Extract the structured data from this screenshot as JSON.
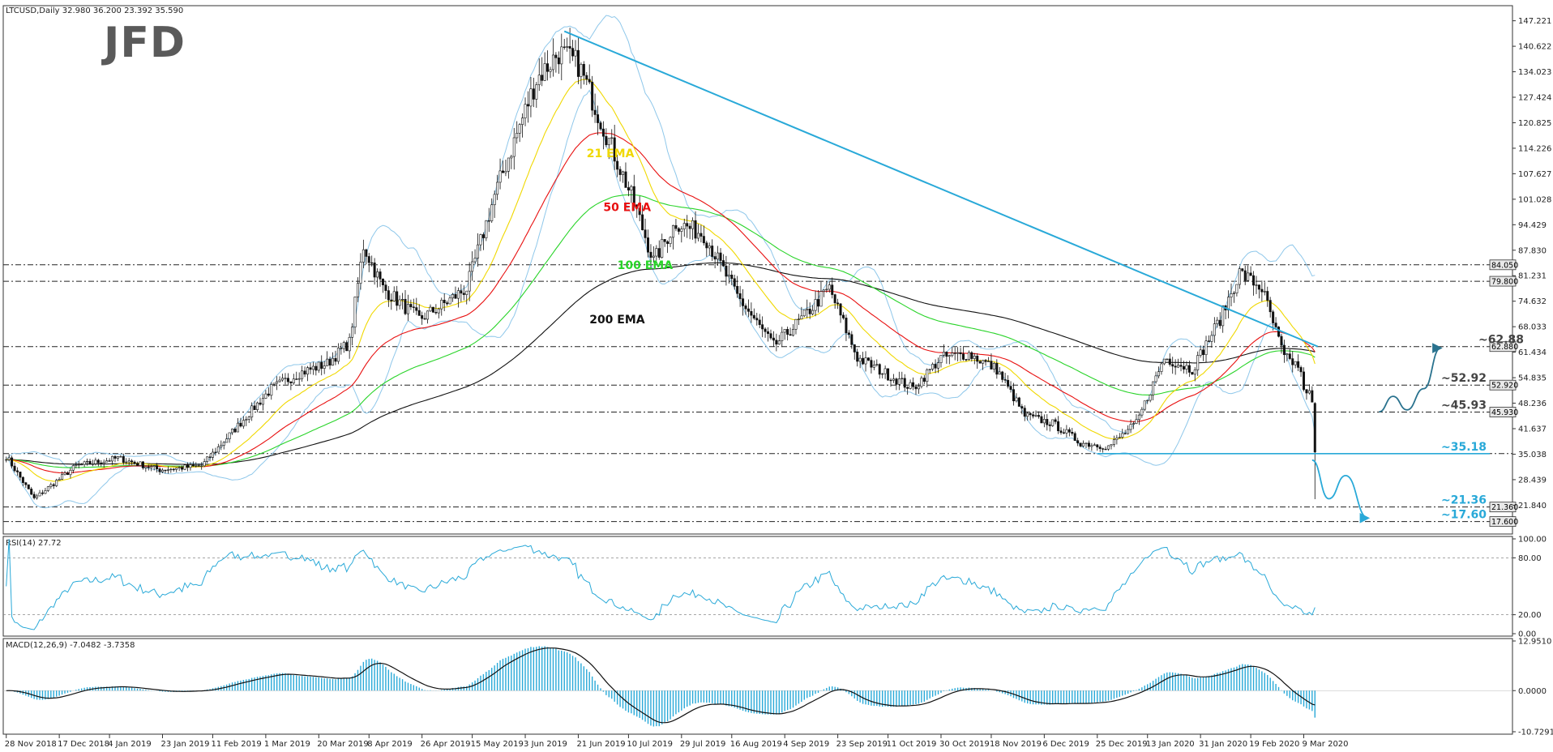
{
  "symbol_header": "LTCUSD,Daily  32.980 36.200 23.392 35.590",
  "logo": "JFD",
  "rsi_header": "RSI(14) 27.72",
  "macd_header": "MACD(12,26,9) -7.0482 -3.7358",
  "colors": {
    "trendline": "#29a9d8",
    "ema21": "#f0d800",
    "ema50": "#e81010",
    "ema100": "#29d429",
    "ema200": "#111111",
    "bollinger": "#8ec7ea",
    "rsi": "#29a9d8",
    "macd_hist": "#29a9d8",
    "macd_signal": "#111111",
    "level_text": "#444444",
    "target_text": "#29a9d8"
  },
  "chart_data": [
    {
      "type": "candlestick",
      "name": "price",
      "ylim": [
        15.0,
        150.5
      ],
      "y_ticks": [
        "147.221",
        "140.622",
        "134.023",
        "127.424",
        "120.825",
        "114.226",
        "107.627",
        "101.028",
        "94.429",
        "87.830",
        "81.231",
        "74.632",
        "68.033",
        "61.434",
        "54.835",
        "48.236",
        "41.637",
        "35.038",
        "28.439",
        "21.840"
      ],
      "x_tick_labels": [
        "28 Nov 2018",
        "17 Dec 2018",
        "4 Jan 2019",
        "23 Jan 2019",
        "11 Feb 2019",
        "1 Mar 2019",
        "20 Mar 2019",
        "8 Apr 2019",
        "26 Apr 2019",
        "15 May 2019",
        "3 Jun 2019",
        "21 Jun 2019",
        "10 Jul 2019",
        "29 Jul 2019",
        "16 Aug 2019",
        "4 Sep 2019",
        "23 Sep 2019",
        "11 Oct 2019",
        "30 Oct 2019",
        "18 Nov 2019",
        "6 Dec 2019",
        "25 Dec 2019",
        "13 Jan 2020",
        "31 Jan 2020",
        "19 Feb 2020",
        "9 Mar 2020"
      ],
      "close_anchors": [
        [
          0,
          34.5
        ],
        [
          10,
          23.5
        ],
        [
          25,
          32
        ],
        [
          40,
          34
        ],
        [
          55,
          31
        ],
        [
          70,
          32
        ],
        [
          80,
          40
        ],
        [
          95,
          52
        ],
        [
          105,
          56
        ],
        [
          115,
          58.5
        ],
        [
          123,
          64
        ],
        [
          128,
          89
        ],
        [
          135,
          78
        ],
        [
          148,
          70
        ],
        [
          155,
          73
        ],
        [
          165,
          78
        ],
        [
          175,
          102
        ],
        [
          183,
          118
        ],
        [
          190,
          132
        ],
        [
          198,
          139
        ],
        [
          205,
          136
        ],
        [
          215,
          118
        ],
        [
          225,
          100
        ],
        [
          232,
          85
        ],
        [
          240,
          95
        ],
        [
          250,
          92
        ],
        [
          262,
          76
        ],
        [
          275,
          63
        ],
        [
          285,
          70
        ],
        [
          295,
          78
        ],
        [
          305,
          60
        ],
        [
          315,
          56
        ],
        [
          325,
          52
        ],
        [
          335,
          60
        ],
        [
          345,
          61
        ],
        [
          355,
          57
        ],
        [
          365,
          45
        ],
        [
          375,
          43
        ],
        [
          385,
          38
        ],
        [
          395,
          37
        ],
        [
          405,
          43
        ],
        [
          415,
          60
        ],
        [
          425,
          57
        ],
        [
          435,
          70
        ],
        [
          442,
          82
        ],
        [
          450,
          78
        ],
        [
          458,
          60
        ],
        [
          463,
          58
        ],
        [
          466,
          50
        ],
        [
          468,
          35.6
        ]
      ],
      "levels": [
        {
          "value": 84.05,
          "label": "84.050",
          "style": "dashdot"
        },
        {
          "value": 79.8,
          "label": "79.800",
          "style": "dashdot"
        },
        {
          "value": 62.88,
          "label": "62.880",
          "style": "dashdot",
          "annotation": "~62.88"
        },
        {
          "value": 52.92,
          "label": "52.920",
          "style": "dashdot",
          "annotation": "~52.92"
        },
        {
          "value": 45.93,
          "label": "45.930",
          "style": "dashdot",
          "annotation": "~45.93"
        },
        {
          "value": 35.18,
          "label": "",
          "style": "dashdot",
          "annotation": "~35.18"
        },
        {
          "value": 21.36,
          "label": "21.360",
          "style": "dashdot",
          "annotation": "~21.36"
        },
        {
          "value": 17.6,
          "label": "17.600",
          "style": "dashdot",
          "annotation": "~17.60"
        }
      ],
      "trendline": {
        "from": [
          200,
          144.5
        ],
        "to": [
          470,
          62.9
        ]
      },
      "support_segment": {
        "from": [
          391,
          35.18
        ],
        "value": 35.18
      },
      "indicators": [
        "21 EMA",
        "50 EMA",
        "100 EMA",
        "200 EMA",
        "Bollinger Bands"
      ],
      "ema_labels": [
        {
          "text": "21 EMA",
          "x": 208,
          "y": 113
        },
        {
          "text": "50 EMA",
          "x": 214,
          "y": 99
        },
        {
          "text": "100 EMA",
          "x": 219,
          "y": 84
        },
        {
          "text": "200 EMA",
          "x": 209,
          "y": 70
        }
      ],
      "scenario_up": [
        [
          492,
          46
        ],
        [
          497,
          50
        ],
        [
          502,
          46.5
        ],
        [
          508,
          52
        ],
        [
          514,
          62.5
        ]
      ],
      "scenario_down": [
        [
          468,
          33.5
        ],
        [
          474,
          23.5
        ],
        [
          480,
          29.5
        ],
        [
          488,
          18.5
        ]
      ]
    },
    {
      "type": "line",
      "name": "RSI(14)",
      "ylim": [
        0,
        100
      ],
      "y_ticks": [
        "100.00",
        "80.00",
        "20.00",
        "0.00"
      ],
      "levels": [
        80,
        20
      ],
      "last": 27.72
    },
    {
      "type": "bar+line",
      "name": "MACD(12,26,9)",
      "ylim": [
        -10.7291,
        12.951
      ],
      "y_ticks": [
        "12.9510",
        "0.0000",
        "-10.7291"
      ],
      "macd": -7.0482,
      "signal": -3.7358
    }
  ]
}
